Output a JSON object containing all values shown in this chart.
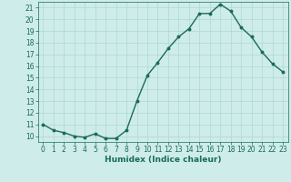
{
  "x": [
    0,
    1,
    2,
    3,
    4,
    5,
    6,
    7,
    8,
    9,
    10,
    11,
    12,
    13,
    14,
    15,
    16,
    17,
    18,
    19,
    20,
    21,
    22,
    23
  ],
  "y": [
    11,
    10.5,
    10.3,
    10.0,
    9.9,
    10.2,
    9.8,
    9.8,
    10.5,
    13.0,
    15.2,
    16.3,
    17.5,
    18.5,
    19.2,
    20.5,
    20.5,
    21.3,
    20.7,
    19.3,
    18.5,
    17.2,
    16.2,
    15.5
  ],
  "line_color": "#1a6b5a",
  "marker": "o",
  "markersize": 1.8,
  "linewidth": 1.0,
  "bg_color": "#ceecea",
  "grid_color": "#aed8d4",
  "xlabel": "Humidex (Indice chaleur)",
  "xlim": [
    -0.5,
    23.5
  ],
  "ylim": [
    9.5,
    21.5
  ],
  "yticks": [
    10,
    11,
    12,
    13,
    14,
    15,
    16,
    17,
    18,
    19,
    20,
    21
  ],
  "xticks": [
    0,
    1,
    2,
    3,
    4,
    5,
    6,
    7,
    8,
    9,
    10,
    11,
    12,
    13,
    14,
    15,
    16,
    17,
    18,
    19,
    20,
    21,
    22,
    23
  ],
  "tick_color": "#1a6b5a",
  "label_color": "#1a6b5a",
  "tick_fontsize": 5.5,
  "xlabel_fontsize": 6.5
}
